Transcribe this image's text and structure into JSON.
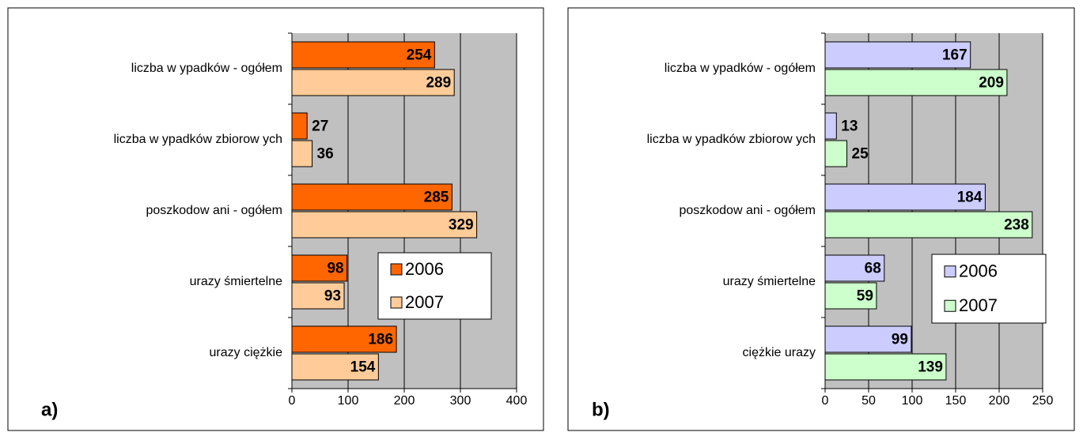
{
  "chart_data": [
    {
      "type": "bar",
      "orientation": "horizontal",
      "panel_label": "a)",
      "categories": [
        "liczba w ypadków  -  ogółem",
        "liczba w ypadków  zbiorow ych",
        "poszkodow ani  -  ogółem",
        "urazy śmiertelne",
        "urazy ciężkie"
      ],
      "series": [
        {
          "name": "2006",
          "color": "#ff6600",
          "values": [
            254,
            27,
            285,
            98,
            186
          ]
        },
        {
          "name": "2007",
          "color": "#ffcc99",
          "values": [
            289,
            36,
            329,
            93,
            154
          ]
        }
      ],
      "xlim": [
        0,
        400
      ],
      "xticks": [
        0,
        100,
        200,
        300,
        400
      ],
      "grid": true,
      "legend": "lower right"
    },
    {
      "type": "bar",
      "orientation": "horizontal",
      "panel_label": "b)",
      "categories": [
        "liczba w ypadków  -  ogółem",
        "liczba w ypadków  zbiorow ych",
        "poszkodow ani  -  ogółem",
        "urazy śmiertelne",
        "ciężkie urazy"
      ],
      "series": [
        {
          "name": "2006",
          "color": "#ccccff",
          "values": [
            167,
            13,
            184,
            68,
            99
          ]
        },
        {
          "name": "2007",
          "color": "#ccffcc",
          "values": [
            209,
            25,
            238,
            59,
            139
          ]
        }
      ],
      "xlim": [
        0,
        250
      ],
      "xticks": [
        0,
        50,
        100,
        150,
        200,
        250
      ],
      "grid": true,
      "legend": "lower right"
    }
  ]
}
